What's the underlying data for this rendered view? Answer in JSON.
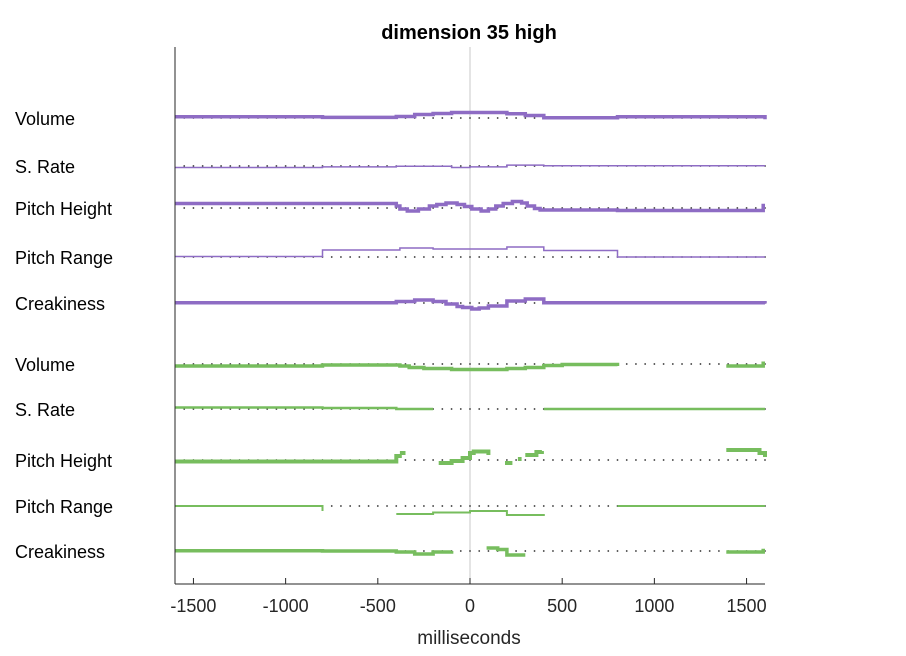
{
  "chart_data": {
    "type": "line",
    "title": "dimension 35 high",
    "xlabel": "milliseconds",
    "xlim": [
      -1600,
      1600
    ],
    "x_ticks": [
      -1500,
      -1000,
      -500,
      0,
      500,
      1000,
      1500
    ],
    "x_tick_labels": [
      "-1500",
      "-1000",
      "-500",
      "0",
      "500",
      "1000",
      "1500"
    ],
    "reference_line_x": 0,
    "baseline_markers_every": 50,
    "colors": {
      "purple": "#8E6CC4",
      "green": "#77BD5E",
      "axis": "#262626",
      "zero_line": "#C8C8C8"
    },
    "groups": [
      {
        "color": "purple",
        "series": [
          {
            "name": "Volume",
            "width": 3.5,
            "points": [
              [
                -1600,
                1.2
              ],
              [
                -800,
                1.2
              ],
              [
                -800,
                0.6
              ],
              [
                -400,
                0.6
              ],
              [
                -400,
                1.5
              ],
              [
                -300,
                1.5
              ],
              [
                -300,
                3.5
              ],
              [
                -200,
                3.5
              ],
              [
                -200,
                4.5
              ],
              [
                -100,
                4.5
              ],
              [
                -100,
                5.5
              ],
              [
                200,
                5.5
              ],
              [
                200,
                4.2
              ],
              [
                300,
                4.2
              ],
              [
                300,
                2.5
              ],
              [
                400,
                2.5
              ],
              [
                400,
                0.3
              ],
              [
                800,
                0.3
              ],
              [
                800,
                1.2
              ],
              [
                1600,
                1.2
              ],
              [
                1600,
                -1.2
              ]
            ]
          },
          {
            "name": "S. Rate",
            "width": 1.5,
            "points": [
              [
                -1600,
                -1.5
              ],
              [
                -800,
                -1.5
              ],
              [
                -800,
                -0.9
              ],
              [
                -400,
                -0.9
              ],
              [
                -400,
                -0.3
              ],
              [
                -100,
                -0.3
              ],
              [
                -100,
                -1.5
              ],
              [
                0,
                -1.5
              ],
              [
                0,
                -0.9
              ],
              [
                200,
                -0.9
              ],
              [
                200,
                0.9
              ],
              [
                400,
                0.9
              ],
              [
                400,
                0.3
              ],
              [
                1600,
                0.3
              ]
            ]
          },
          {
            "name": "Pitch Height",
            "width": 3.5,
            "points": [
              [
                -1600,
                4.5
              ],
              [
                -400,
                4.5
              ],
              [
                -400,
                2
              ],
              [
                -380,
                2
              ],
              [
                -380,
                -1
              ],
              [
                -340,
                -1
              ],
              [
                -340,
                -3
              ],
              [
                -280,
                -3
              ],
              [
                -280,
                -1
              ],
              [
                -220,
                -1
              ],
              [
                -220,
                2
              ],
              [
                -180,
                2
              ],
              [
                -180,
                3.5
              ],
              [
                -130,
                3.5
              ],
              [
                -130,
                5
              ],
              [
                -70,
                5
              ],
              [
                -70,
                3.5
              ],
              [
                -30,
                3.5
              ],
              [
                -30,
                1.5
              ],
              [
                10,
                1.5
              ],
              [
                10,
                -1
              ],
              [
                60,
                -1
              ],
              [
                60,
                -3
              ],
              [
                100,
                -3
              ],
              [
                100,
                -1
              ],
              [
                140,
                -1
              ],
              [
                140,
                2
              ],
              [
                180,
                2
              ],
              [
                180,
                4.5
              ],
              [
                230,
                4.5
              ],
              [
                230,
                6.5
              ],
              [
                280,
                6.5
              ],
              [
                280,
                5
              ],
              [
                310,
                5
              ],
              [
                310,
                2
              ],
              [
                350,
                2
              ],
              [
                350,
                -0.5
              ],
              [
                380,
                -0.5
              ],
              [
                380,
                -2
              ],
              [
                800,
                -2
              ],
              [
                800,
                -2.5
              ],
              [
                1590,
                -2.5
              ],
              [
                1590,
                2.5
              ],
              [
                1600,
                2.5
              ]
            ]
          },
          {
            "name": "Pitch Range",
            "width": 1.5,
            "points": [
              [
                -1600,
                0.5
              ],
              [
                -800,
                0.5
              ],
              [
                -800,
                7
              ],
              [
                -380,
                7
              ],
              [
                -380,
                9
              ],
              [
                -200,
                9
              ],
              [
                -200,
                9.8
              ],
              [
                -200,
                9.8
              ],
              [
                -200,
                8
              ],
              [
                200,
                8
              ],
              [
                200,
                10
              ],
              [
                400,
                10
              ],
              [
                400,
                6.5
              ],
              [
                800,
                6.5
              ],
              [
                800,
                0
              ],
              [
                1600,
                0
              ]
            ]
          },
          {
            "name": "Creakiness",
            "width": 3.5,
            "points": [
              [
                -1600,
                0.3
              ],
              [
                -400,
                0.3
              ],
              [
                -400,
                1.5
              ],
              [
                -300,
                1.5
              ],
              [
                -300,
                3
              ],
              [
                -200,
                3
              ],
              [
                -200,
                1.5
              ],
              [
                -130,
                1.5
              ],
              [
                -130,
                -1
              ],
              [
                -70,
                -1
              ],
              [
                -70,
                -3.5
              ],
              [
                -40,
                -3.5
              ],
              [
                -40,
                -4.5
              ],
              [
                10,
                -4.5
              ],
              [
                10,
                -6
              ],
              [
                50,
                -6
              ],
              [
                50,
                -5
              ],
              [
                100,
                -5
              ],
              [
                100,
                -3
              ],
              [
                200,
                -3
              ],
              [
                200,
                2
              ],
              [
                300,
                2
              ],
              [
                300,
                4
              ],
              [
                400,
                4
              ],
              [
                400,
                0.3
              ],
              [
                1600,
                0.3
              ],
              [
                1600,
                -0.5
              ]
            ]
          }
        ]
      },
      {
        "color": "green",
        "series": [
          {
            "name": "Volume",
            "width": 3.5,
            "segments": [
              [
                [
                  -1600,
                  -2
                ],
                [
                  -800,
                  -2
                ],
                [
                  -800,
                  -1
                ],
                [
                  -380,
                  -1
                ],
                [
                  -380,
                  -2
                ],
                [
                  -330,
                  -2
                ],
                [
                  -330,
                  -3.5
                ],
                [
                  -250,
                  -3.5
                ],
                [
                  -250,
                  -4.5
                ],
                [
                  -100,
                  -4.5
                ],
                [
                  -100,
                  -5.5
                ],
                [
                  200,
                  -5.5
                ],
                [
                  200,
                  -4.5
                ],
                [
                  300,
                  -4.5
                ],
                [
                  300,
                  -3.5
                ],
                [
                  400,
                  -3.5
                ],
                [
                  400,
                  -1.5
                ],
                [
                  500,
                  -1.5
                ],
                [
                  500,
                  -0.5
                ],
                [
                  800,
                  -0.5
                ],
                [
                  800,
                  -2
                ]
              ],
              [
                [
                  1390,
                  -2
                ],
                [
                  1590,
                  -2
                ],
                [
                  1590,
                  0.8
                ],
                [
                  1600,
                  0.8
                ]
              ]
            ]
          },
          {
            "name": "S. Rate",
            "width": 2.5,
            "segments": [
              [
                [
                  -1600,
                  1.5
                ],
                [
                  -800,
                  1.5
                ],
                [
                  -800,
                  1
                ],
                [
                  -400,
                  1
                ],
                [
                  -400,
                  0
                ],
                [
                  -200,
                  0
                ]
              ],
              [
                [
                  400,
                  0
                ],
                [
                  1600,
                  0
                ]
              ]
            ]
          },
          {
            "name": "Pitch Height",
            "width": 4,
            "segments": [
              [
                [
                  -1600,
                  -1.5
                ],
                [
                  -400,
                  -1.5
                ],
                [
                  -400,
                  4
                ],
                [
                  -370,
                  4
                ]
              ],
              [
                [
                  -380,
                  7
                ],
                [
                  -350,
                  7
                ]
              ],
              [
                [
                  -170,
                  -3
                ],
                [
                  -100,
                  -3
                ],
                [
                  -100,
                  -1
                ],
                [
                  -40,
                  -1
                ],
                [
                  -40,
                  2
                ],
                [
                  0,
                  2
                ],
                [
                  0,
                  7
                ],
                [
                  20,
                  7
                ],
                [
                  20,
                  8.5
                ],
                [
                  100,
                  8.5
                ],
                [
                  100,
                  5
                ]
              ],
              [
                [
                  190,
                  -3
                ],
                [
                  230,
                  -3
                ]
              ],
              [
                [
                  260,
                  1
                ],
                [
                  280,
                  1
                ]
              ],
              [
                [
                  300,
                  5
                ],
                [
                  360,
                  5
                ],
                [
                  360,
                  8
                ],
                [
                  390,
                  8
                ],
                [
                  390,
                  9
                ]
              ],
              [
                [
                  1390,
                  10
                ],
                [
                  1570,
                  10
                ],
                [
                  1570,
                  7
                ],
                [
                  1600,
                  7
                ],
                [
                  1600,
                  3
                ]
              ]
            ]
          },
          {
            "name": "Pitch Range",
            "width": 2,
            "segments": [
              [
                [
                  -1600,
                  0
                ],
                [
                  -800,
                  0
                ],
                [
                  -800,
                  -5
                ]
              ],
              [
                [
                  -400,
                  -8
                ],
                [
                  -200,
                  -8
                ],
                [
                  -200,
                  -6.5
                ],
                [
                  0,
                  -6.5
                ],
                [
                  0,
                  -5
                ],
                [
                  200,
                  -5
                ],
                [
                  200,
                  -9
                ],
                [
                  400,
                  -9
                ],
                [
                  400,
                  -8
                ]
              ],
              [
                [
                  800,
                  0
                ],
                [
                  1600,
                  0
                ]
              ]
            ]
          },
          {
            "name": "Creakiness",
            "width": 3.5,
            "segments": [
              [
                [
                  -1600,
                  0.3
                ],
                [
                  -800,
                  0.3
                ],
                [
                  -800,
                  0
                ],
                [
                  -400,
                  0
                ],
                [
                  -400,
                  -1
                ],
                [
                  -300,
                  -1
                ],
                [
                  -300,
                  -3
                ],
                [
                  -200,
                  -3
                ],
                [
                  -200,
                  -1
                ],
                [
                  -100,
                  -1
                ],
                [
                  -100,
                  0
                ]
              ],
              [
                [
                  90,
                  3
                ],
                [
                  150,
                  3
                ],
                [
                  150,
                  1.5
                ],
                [
                  200,
                  1.5
                ],
                [
                  200,
                  -4
                ],
                [
                  300,
                  -4
                ]
              ],
              [
                [
                  1390,
                  -1
                ],
                [
                  1590,
                  -1
                ],
                [
                  1590,
                  0.5
                ],
                [
                  1600,
                  0.5
                ]
              ]
            ]
          }
        ]
      }
    ]
  }
}
